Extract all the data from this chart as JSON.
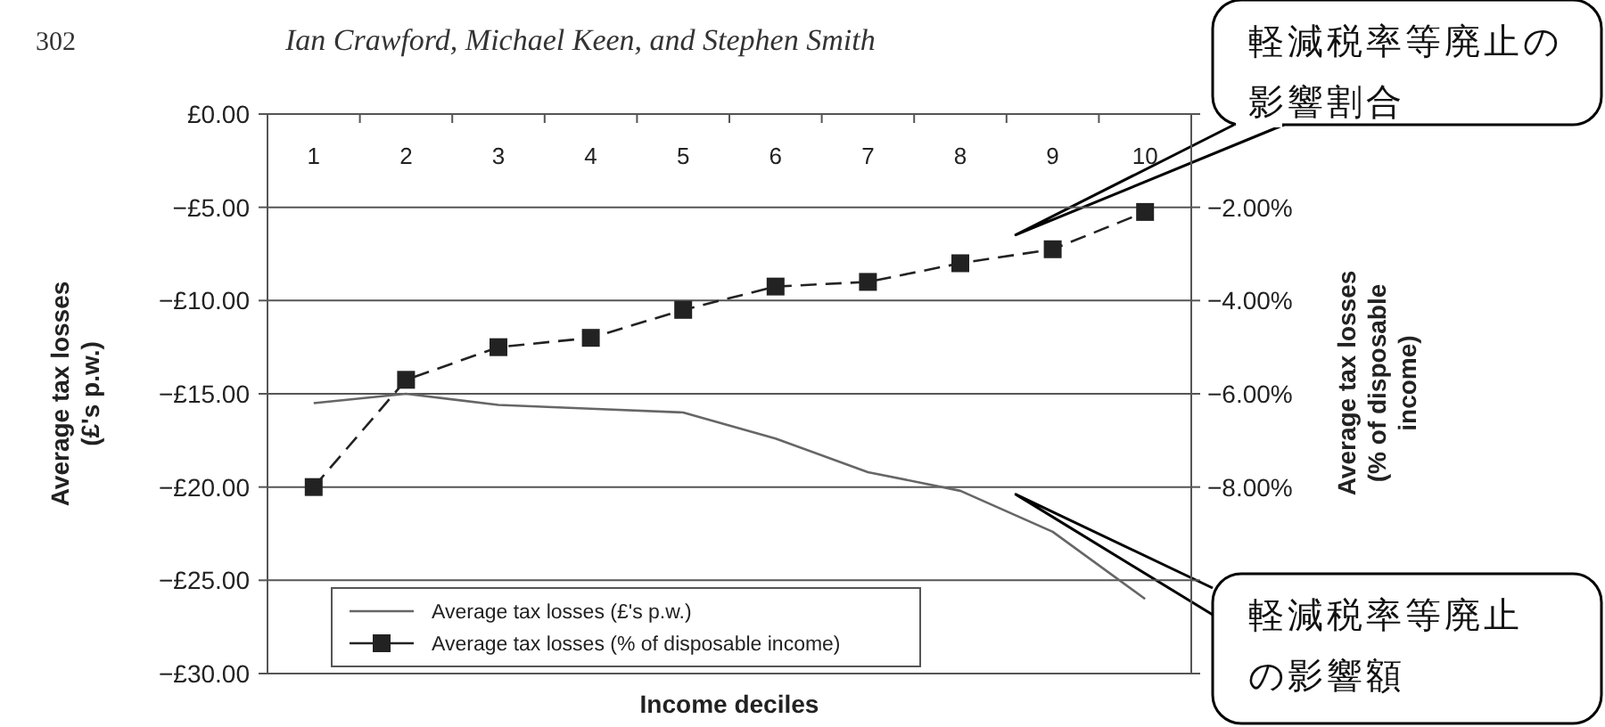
{
  "chart_data": {
    "type": "line",
    "annotations": [
      "302",
      "Ian Crawford, Michael Keen, and Stephen Smith",
      "軽減税率等廃止の影響割合",
      "軽減税率等廃止の影響額"
    ],
    "xlabel": "Income deciles",
    "ylabel": "Average tax losses (£'s p.w.)",
    "y2label": "Average tax losses (% of disposable income)",
    "categories": [
      "1",
      "2",
      "3",
      "4",
      "5",
      "6",
      "7",
      "8",
      "9",
      "10"
    ],
    "series": [
      {
        "name": "Average tax losses (£'s p.w.)",
        "color": "#666666",
        "marker": "none",
        "line_style": "solid",
        "values": [
          -15.5,
          -15.0,
          -15.6,
          -15.8,
          -16.0,
          -17.4,
          -19.2,
          -20.2,
          -22.4,
          -26.0
        ]
      },
      {
        "name": "Average tax losses (% of disposable income)",
        "color": "#222222",
        "marker": "square",
        "line_style": "dashed",
        "axis": "y2",
        "values": [
          -8.0,
          -5.7,
          -5.0,
          -4.8,
          -4.2,
          -3.7,
          -3.6,
          -3.2,
          -2.9,
          -2.1
        ]
      }
    ],
    "ylim": [
      -30,
      0
    ],
    "yticks": [
      {
        "value": 0,
        "label": "£0.00"
      },
      {
        "value": -5,
        "label": "−£5.00"
      },
      {
        "value": -10,
        "label": "−£10.00"
      },
      {
        "value": -15,
        "label": "−£15.00"
      },
      {
        "value": -20,
        "label": "−£20.00"
      },
      {
        "value": -25,
        "label": "−£25.00"
      },
      {
        "value": -30,
        "label": "−£30.00"
      }
    ],
    "y2lim": [
      -12,
      0
    ],
    "y2ticks": [
      {
        "value": 0,
        "label": null
      },
      {
        "value": -2,
        "label": "−2.00%"
      },
      {
        "value": -4,
        "label": "−4.00%"
      },
      {
        "value": -6,
        "label": "−6.00%"
      },
      {
        "value": -8,
        "label": "−8.00%"
      },
      {
        "value": -10,
        "label": null
      },
      {
        "value": -12,
        "label": null
      }
    ],
    "grid": "y",
    "legend": "bottom left"
  }
}
